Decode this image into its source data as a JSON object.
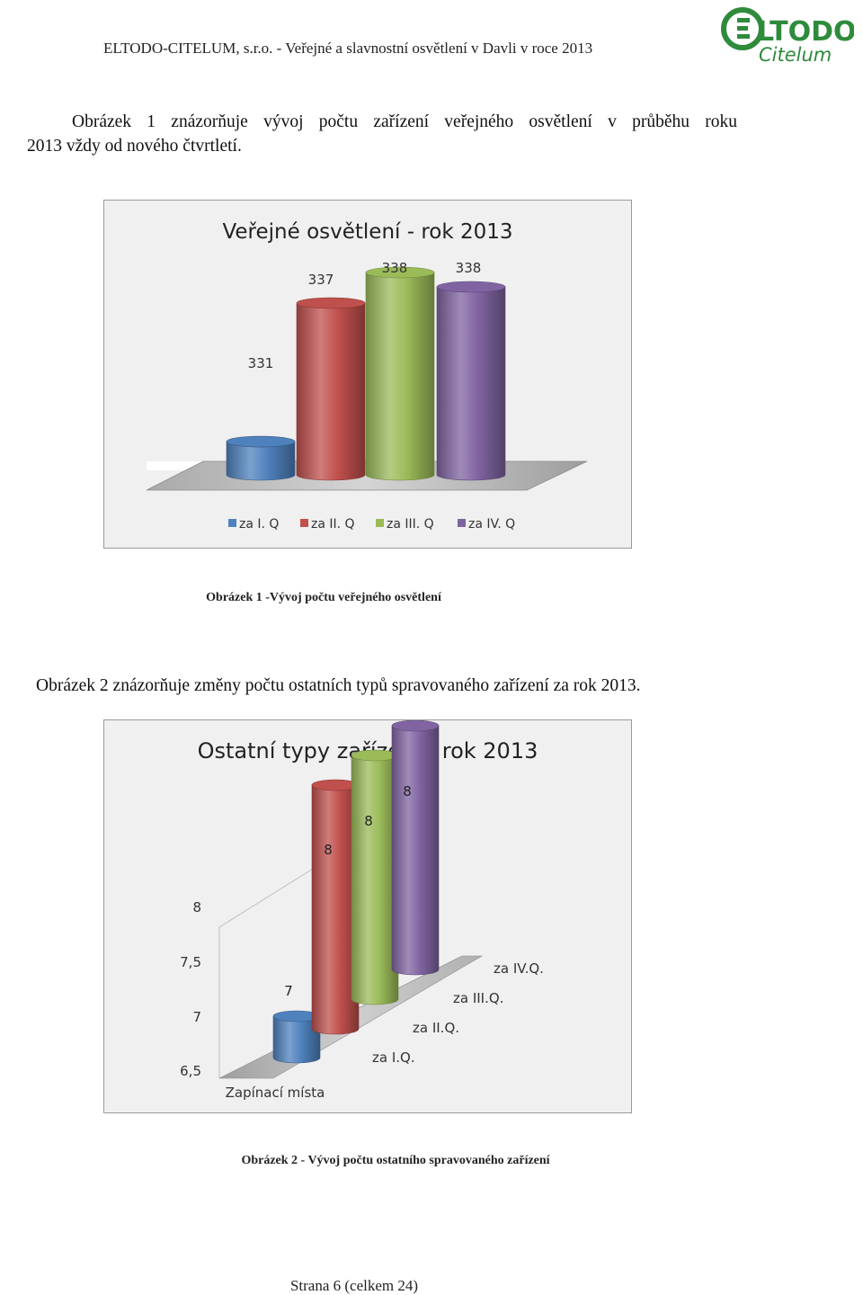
{
  "header": {
    "text": "ELTODO-CITELUM, s.r.o. - Veřejné a slavnostní osvětlení v Davli v roce 2013",
    "logo_top": "LTODO",
    "logo_bottom": "Citelum",
    "logo_color": "#2e8b3c"
  },
  "intro": {
    "line1": "Obrázek 1 znázorňuje vývoj počtu zařízení veřejného osvětlení v průběhu roku",
    "line2": "2013 vždy od nového čtvrtletí."
  },
  "figure1": {
    "caption": "Obrázek 1 -Vývoj počtu veřejného osvětlení"
  },
  "paragraph2": "Obrázek 2 znázorňuje změny počtu ostatních typů spravovaného zařízení za rok 2013.",
  "figure2": {
    "caption": "Obrázek 2 - Vývoj počtu ostatního spravovaného zařízení"
  },
  "footer": "Strana 6 (celkem 24)",
  "chart_data": [
    {
      "type": "bar",
      "title": "Veřejné osvětlení - rok 2013",
      "categories": [
        "za  I. Q",
        "za II. Q",
        "za  III. Q",
        "za IV. Q"
      ],
      "values": [
        331,
        337,
        338,
        338
      ],
      "data_labels": [
        "331",
        "337",
        "338",
        "338"
      ],
      "colors": [
        "#4f81bd",
        "#c0504d",
        "#9bbb59",
        "#8064a2"
      ],
      "legend": "bottom",
      "grid": false
    },
    {
      "type": "bar",
      "title": "Ostatní typy zařízení - rok 2013",
      "categories": [
        "Zapínací místa"
      ],
      "series": [
        {
          "name": "za I.Q.",
          "values": [
            7
          ]
        },
        {
          "name": "za II.Q.",
          "values": [
            8
          ]
        },
        {
          "name": "za III.Q.",
          "values": [
            8
          ]
        },
        {
          "name": "za IV.Q.",
          "values": [
            8
          ]
        }
      ],
      "data_labels": [
        "7",
        "8",
        "8",
        "8"
      ],
      "y_ticks": [
        "6,5",
        "7",
        "7,5",
        "8"
      ],
      "ylim": [
        6.5,
        8
      ],
      "colors": [
        "#4f81bd",
        "#c0504d",
        "#9bbb59",
        "#8064a2"
      ],
      "grid": false
    }
  ]
}
